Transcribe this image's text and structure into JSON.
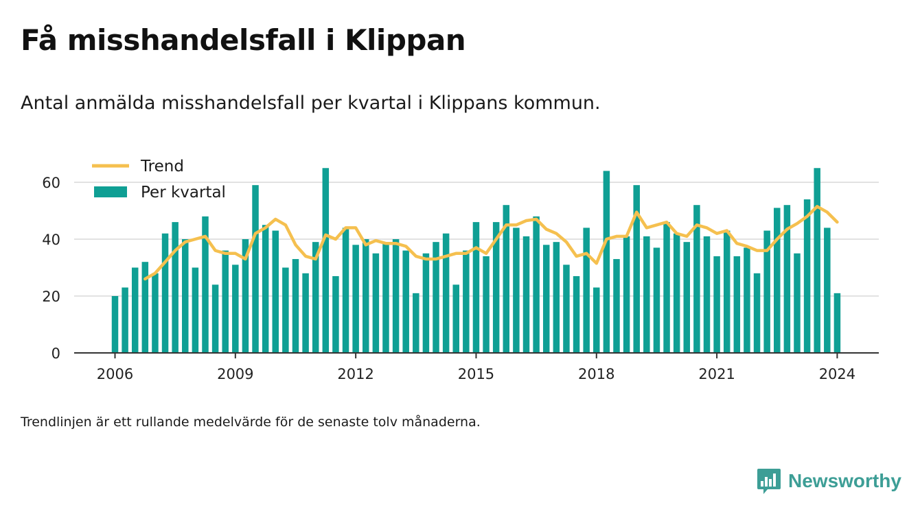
{
  "title": "Få misshandelsfall i Klippan",
  "subtitle": "Antal anmälda misshandelsfall per kvartal i Klippans kommun.",
  "note": "Trendlinjen är ett rullande medelvärde för de senaste tolv månaderna.",
  "brand": {
    "name": "Newsworthy",
    "icon": "newsworthy-bar-chart-logo-icon",
    "color": "#3d9e96"
  },
  "chart_data": {
    "type": "bar",
    "x_start_year": 2006,
    "periods_per_year": 4,
    "ylim": [
      0,
      68
    ],
    "y_ticks": [
      0,
      20,
      40,
      60
    ],
    "x_ticks": [
      2006,
      2009,
      2012,
      2015,
      2018,
      2021,
      2024
    ],
    "x_tick_labels": [
      "2006",
      "2009",
      "2012",
      "2015",
      "2018",
      "2021",
      "2024"
    ],
    "grid": true,
    "legend_position": "top-left",
    "colors": {
      "bars": "#0f9f94",
      "trend": "#f5c04f"
    },
    "series": [
      {
        "name": "Per kvartal",
        "type": "bar",
        "values": [
          20,
          23,
          30,
          32,
          28,
          42,
          46,
          40,
          30,
          48,
          24,
          36,
          31,
          40,
          59,
          45,
          43,
          30,
          33,
          28,
          39,
          65,
          27,
          44,
          38,
          40,
          35,
          39,
          40,
          36,
          21,
          35,
          39,
          42,
          24,
          36,
          46,
          34,
          46,
          52,
          44,
          41,
          48,
          38,
          39,
          31,
          27,
          44,
          23,
          64,
          33,
          41,
          59,
          41,
          37,
          46,
          42,
          39,
          52,
          41,
          34,
          43,
          34,
          37,
          28,
          43,
          51,
          52,
          35,
          54,
          65,
          44,
          21
        ]
      },
      {
        "name": "Trend",
        "type": "line",
        "start_index": 3,
        "values": [
          26,
          28,
          32,
          36,
          39,
          40,
          41,
          36,
          35,
          35,
          33,
          42,
          44,
          47,
          45,
          38,
          34,
          33,
          41.5,
          40,
          44,
          44,
          38,
          39.5,
          38.5,
          38.5,
          37.5,
          34,
          33,
          33,
          34,
          35,
          35,
          37,
          35,
          40,
          45,
          45,
          46.5,
          47,
          43.5,
          42,
          39,
          34,
          35,
          31.5,
          40,
          41,
          41,
          49.5,
          44,
          45,
          46,
          42,
          41,
          45,
          44,
          42,
          43,
          38.5,
          37.5,
          36,
          36,
          40,
          43.5,
          45.5,
          48,
          51.5,
          49.5,
          46
        ]
      }
    ]
  }
}
